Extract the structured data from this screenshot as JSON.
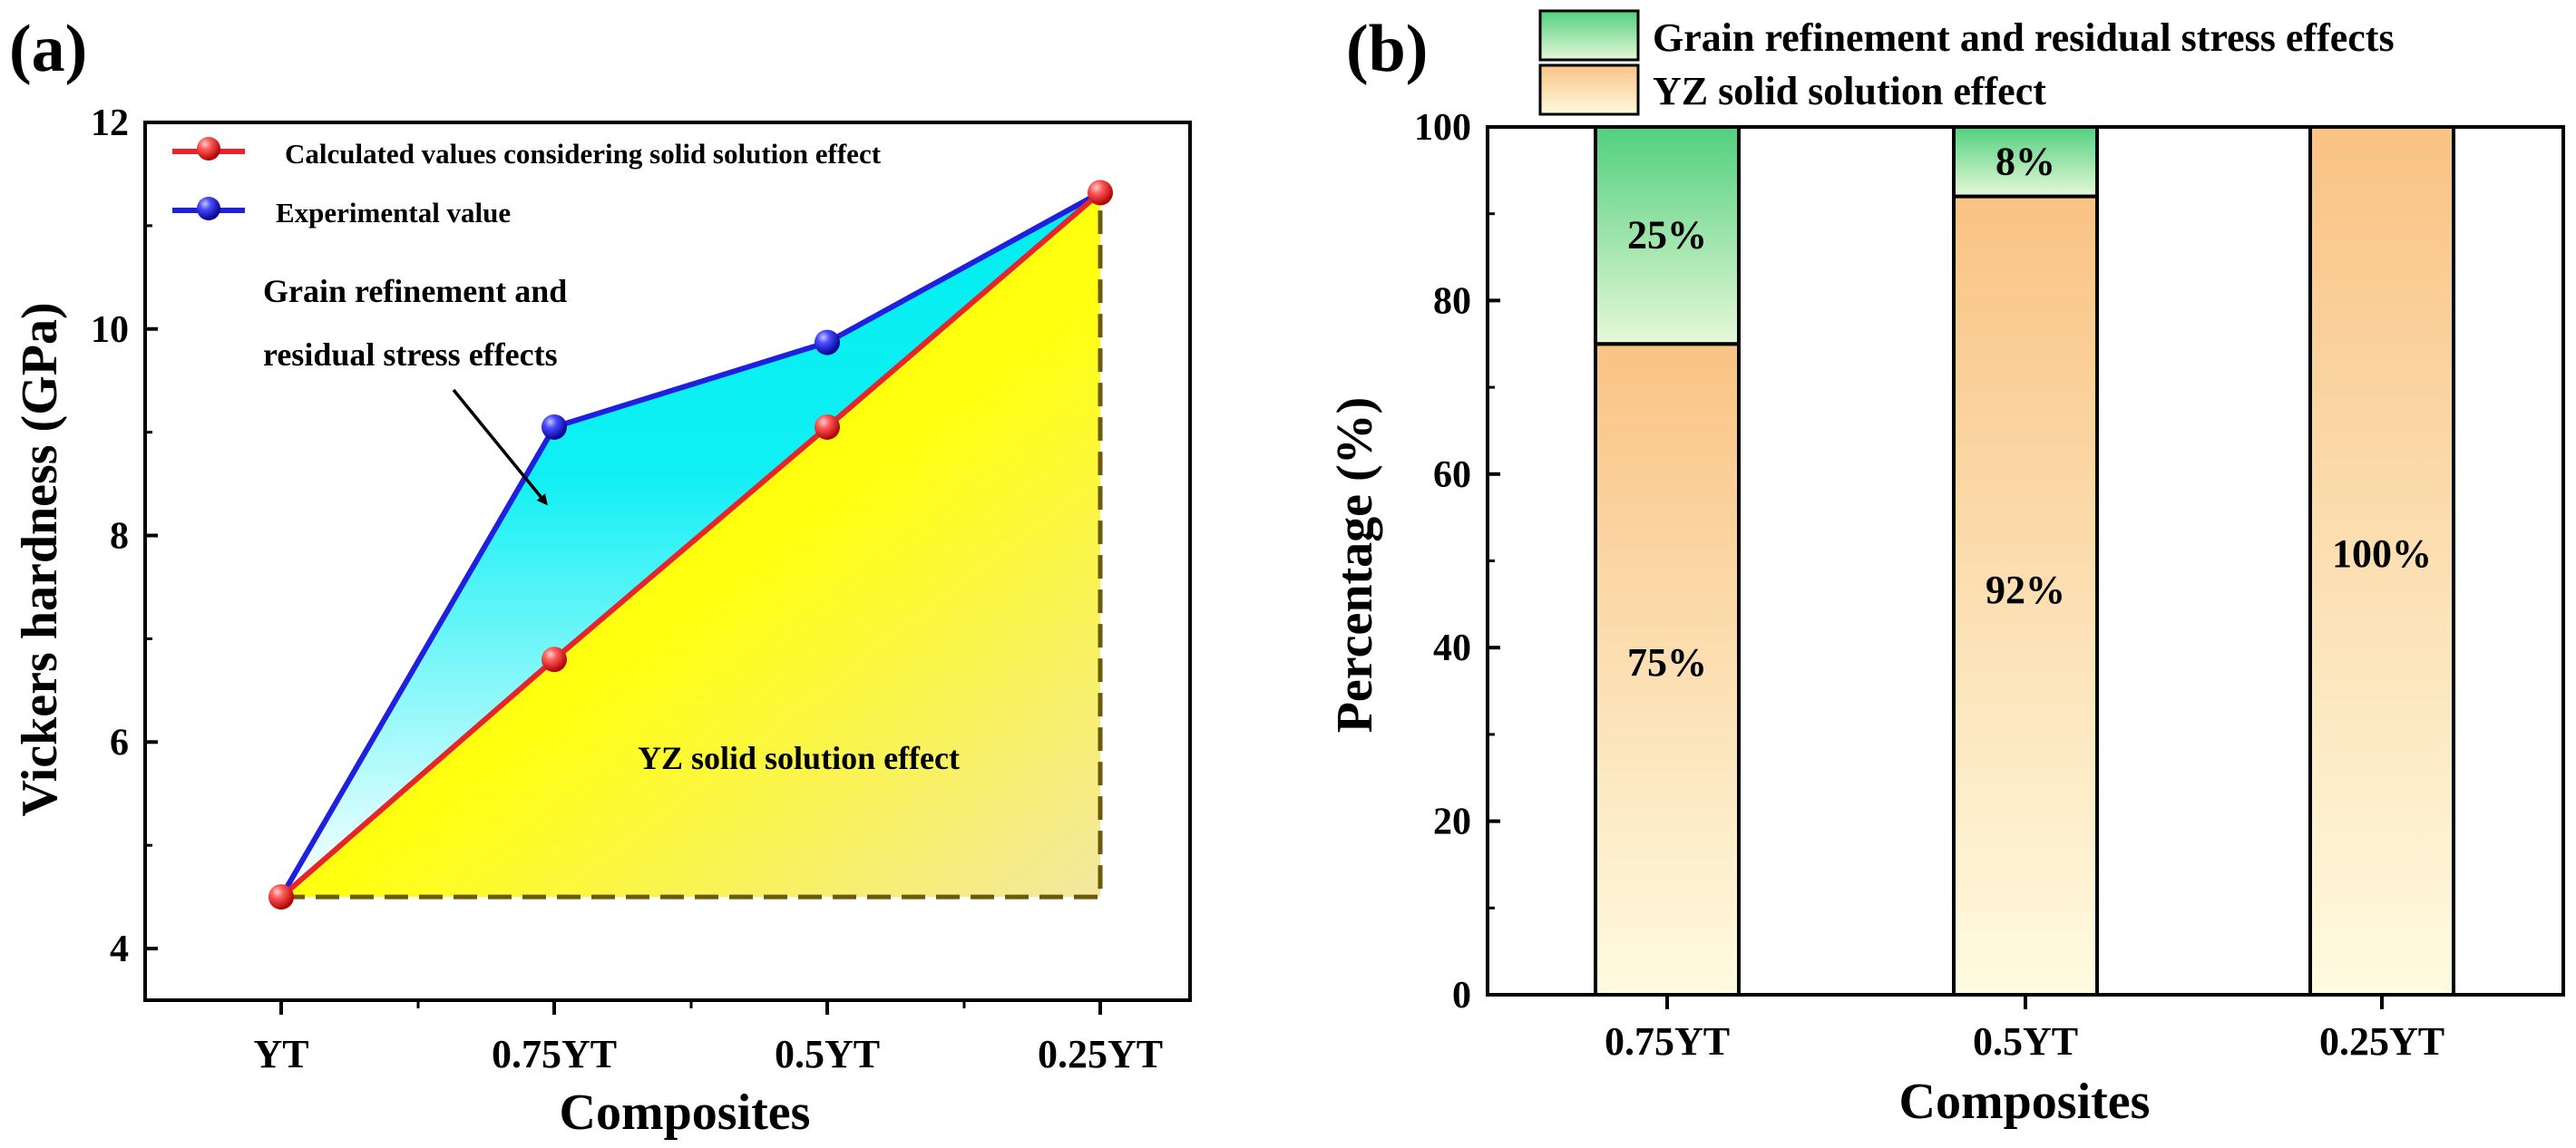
{
  "panels": {
    "a": {
      "label": "(a)"
    },
    "b": {
      "label": "(b)"
    }
  },
  "colors": {
    "calc_line": "#e8242b",
    "exp_line": "#1f1fe0",
    "cyan_fill": "#00f0f0",
    "yellow_fill": "#ffff00",
    "dashed_border": "#6b5a0c",
    "green_bar": "#58d482",
    "orange_bar": "#f9c78a",
    "bar_light": "#fdf6cf"
  },
  "chart_data": [
    {
      "type": "line",
      "panel": "(a)",
      "categories": [
        "YT",
        "0.75YT",
        "0.5YT",
        "0.25YT"
      ],
      "series": [
        {
          "name": "Calculated values considering solid solution effect",
          "values": [
            4.5,
            6.8,
            9.05,
            11.32
          ],
          "color": "#e8242b"
        },
        {
          "name": "Experimental value",
          "values": [
            4.5,
            9.05,
            9.87,
            11.32
          ],
          "color": "#1f1fe0"
        }
      ],
      "baseline": 4.5,
      "title": "",
      "xlabel": "Composites",
      "ylabel": "Vickers hardness (GPa)",
      "ylim": [
        3.5,
        12
      ],
      "yticks": [
        4,
        6,
        8,
        10,
        12
      ],
      "legend_position": "top-left",
      "annotations": [
        {
          "text_lines": [
            "Grain refinement and",
            "residual stress effects"
          ],
          "points_to": "region between experimental and calculated curves"
        },
        {
          "text_lines": [
            "YZ solid solution effect"
          ],
          "points_to": "region under calculated curve"
        }
      ]
    },
    {
      "type": "bar",
      "stacked": true,
      "panel": "(b)",
      "categories": [
        "0.75YT",
        "0.5YT",
        "0.25YT"
      ],
      "series": [
        {
          "name": "YZ solid solution effect",
          "values": [
            75,
            92,
            100
          ],
          "labels": [
            "75%",
            "92%",
            "100%"
          ]
        },
        {
          "name": "Grain refinement and residual stress effects",
          "values": [
            25,
            8,
            0
          ],
          "labels": [
            "25%",
            "8%",
            ""
          ]
        }
      ],
      "title": "",
      "xlabel": "Composites",
      "ylabel": "Percentage (%)",
      "ylim": [
        0,
        100
      ],
      "yticks": [
        0,
        20,
        40,
        60,
        80,
        100
      ],
      "legend_position": "top (above plot)"
    }
  ]
}
